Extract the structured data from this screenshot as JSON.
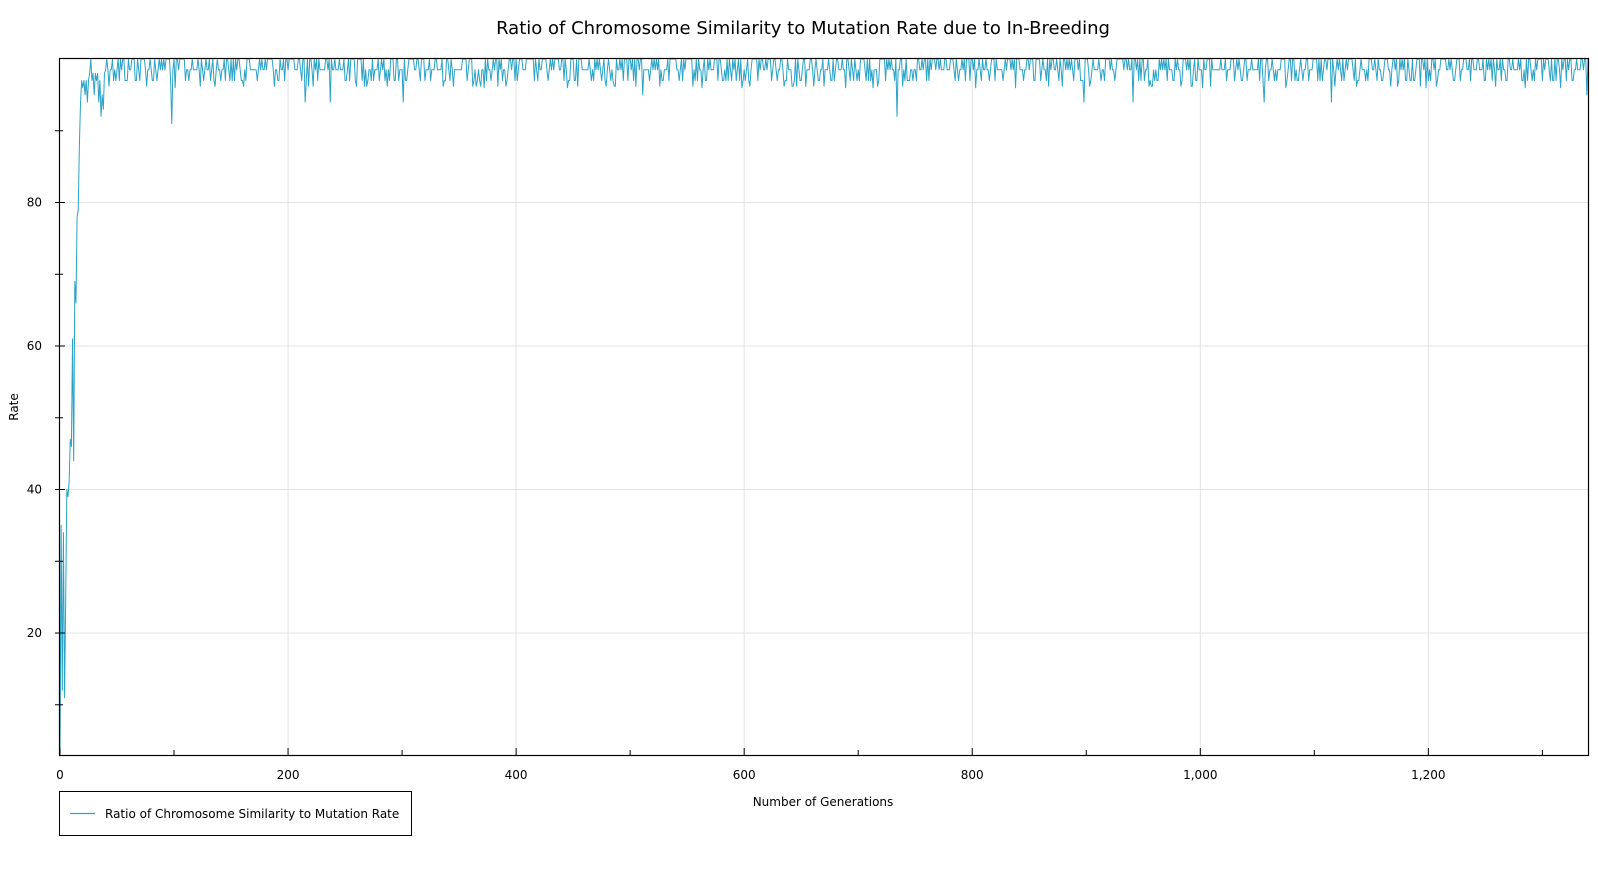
{
  "chart_data": {
    "type": "line",
    "title": "Ratio of Chromosome Similarity to Mutation Rate due to In-Breeding",
    "xlabel": "Number of Generations",
    "ylabel": "Rate",
    "xlim": [
      0,
      1340
    ],
    "ylim": [
      3,
      100
    ],
    "x_ticks": [
      0,
      200,
      400,
      600,
      800,
      1000,
      1200
    ],
    "x_tick_labels": [
      "0",
      "200",
      "400",
      "600",
      "800",
      "1,000",
      "1,200"
    ],
    "x_minor_ticks": [
      100,
      300,
      500,
      700,
      900,
      1100,
      1300
    ],
    "y_ticks": [
      20,
      40,
      60,
      80
    ],
    "y_tick_labels": [
      "20",
      "40",
      "60",
      "80"
    ],
    "y_minor_ticks": [
      10,
      30,
      50,
      70,
      90
    ],
    "grid": true,
    "legend_position": "bottom-left",
    "series": [
      {
        "name": "Ratio of Chromosome Similarity to Mutation Rate",
        "color": "#2aa3c6",
        "points": [
          [
            0,
            3
          ],
          [
            1,
            35
          ],
          [
            2,
            12
          ],
          [
            3,
            34
          ],
          [
            4,
            11
          ],
          [
            5,
            25
          ],
          [
            6,
            40
          ],
          [
            7,
            39
          ],
          [
            8,
            41
          ],
          [
            9,
            47
          ],
          [
            10,
            46
          ],
          [
            11,
            61
          ],
          [
            12,
            44
          ],
          [
            13,
            69
          ],
          [
            14,
            66
          ],
          [
            15,
            78
          ],
          [
            16,
            79
          ],
          [
            17,
            88
          ],
          [
            18,
            94
          ],
          [
            19,
            97
          ],
          [
            20,
            96
          ],
          [
            21,
            97
          ],
          [
            22,
            95
          ],
          [
            23,
            97
          ],
          [
            24,
            94
          ],
          [
            25,
            97
          ],
          [
            26,
            98
          ],
          [
            27,
            100
          ],
          [
            28,
            97
          ],
          [
            29,
            98
          ],
          [
            30,
            95
          ],
          [
            31,
            98
          ],
          [
            32,
            97
          ],
          [
            33,
            98
          ],
          [
            34,
            94
          ],
          [
            35,
            97
          ],
          [
            36,
            92
          ],
          [
            37,
            95
          ],
          [
            38,
            93
          ],
          [
            39,
            98
          ]
        ],
        "tail": {
          "x_start": 40,
          "x_end": 1340,
          "top": 100,
          "typical_low": 97,
          "dips": [
            [
              98,
              91
            ],
            [
              101,
              96
            ],
            [
              215,
              94
            ],
            [
              237,
              94
            ],
            [
              301,
              94
            ],
            [
              372,
              96
            ],
            [
              445,
              96
            ],
            [
              511,
              95
            ],
            [
              563,
              96
            ],
            [
              598,
              96
            ],
            [
              689,
              96
            ],
            [
              713,
              96
            ],
            [
              734,
              92
            ],
            [
              803,
              96
            ],
            [
              838,
              96
            ],
            [
              898,
              94
            ],
            [
              941,
              94
            ],
            [
              1002,
              96
            ],
            [
              1056,
              94
            ],
            [
              1075,
              96
            ],
            [
              1115,
              94
            ],
            [
              1198,
              96
            ],
            [
              1285,
              96
            ],
            [
              1316,
              96
            ],
            [
              1339,
              95
            ]
          ]
        }
      }
    ]
  }
}
